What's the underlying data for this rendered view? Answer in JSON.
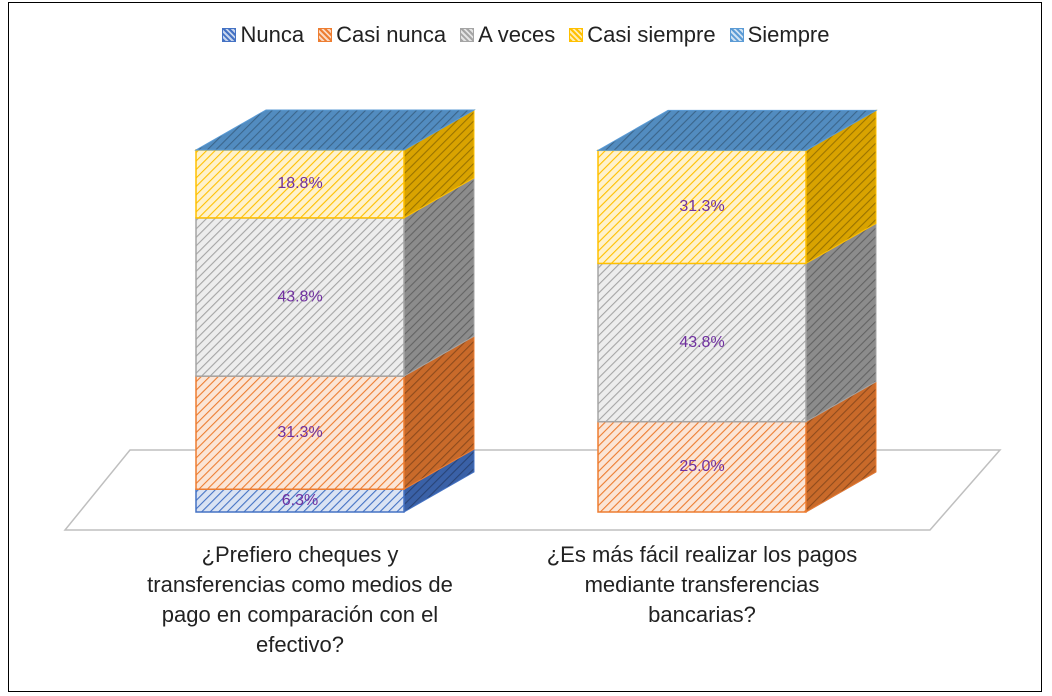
{
  "chart_data": {
    "type": "bar",
    "stacked": true,
    "three_d": true,
    "legend": "top",
    "categories": [
      "¿Prefiero cheques y transferencias como medios de pago en comparación con el efectivo?",
      "¿Es más fácil realizar los pagos mediante transferencias bancarias?"
    ],
    "series": [
      {
        "name": "Nunca",
        "color": "#4472c4",
        "values": [
          6.3,
          0
        ],
        "value_labels": [
          "6.3%",
          null
        ]
      },
      {
        "name": "Casi nunca",
        "color": "#ed7d31",
        "values": [
          31.3,
          25.0
        ],
        "value_labels": [
          "31.3%",
          "25.0%"
        ]
      },
      {
        "name": "A veces",
        "color": "#a5a5a5",
        "values": [
          43.8,
          43.8
        ],
        "value_labels": [
          "43.8%",
          "43.8%"
        ]
      },
      {
        "name": "Casi siempre",
        "color": "#ffc000",
        "values": [
          18.8,
          31.3
        ],
        "value_labels": [
          "18.8%",
          "31.3%"
        ]
      },
      {
        "name": "Siempre",
        "color": "#5b9bd5",
        "values": [
          0,
          0
        ],
        "value_labels": [
          null,
          null
        ]
      }
    ]
  }
}
